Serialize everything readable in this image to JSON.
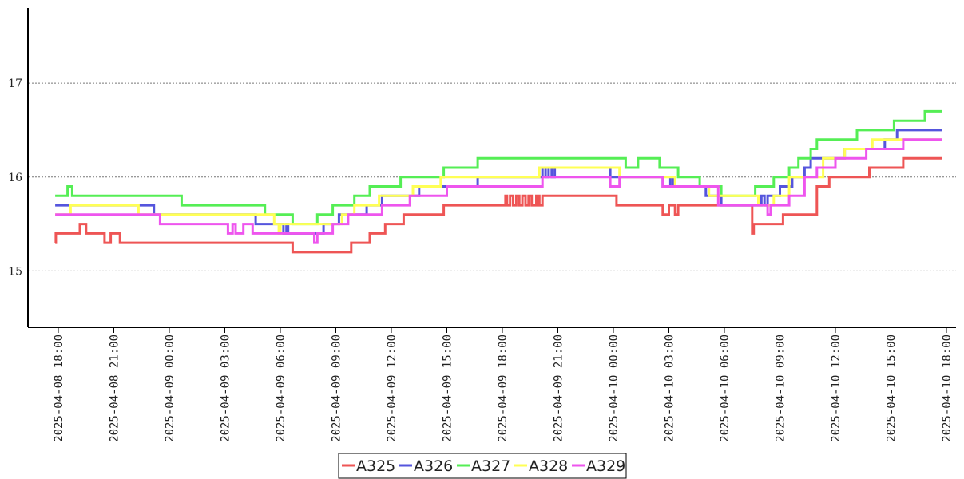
{
  "chart_data": {
    "type": "line",
    "step": true,
    "x_type": "datetime",
    "xlim": [
      "2025-04-08 18:00",
      "2025-04-10 18:00"
    ],
    "ylim": [
      14.4,
      17.8
    ],
    "y_ticks": [
      "15",
      "16",
      "17"
    ],
    "x_ticks": [
      "2025-04-08 18:00",
      "2025-04-08 21:00",
      "2025-04-09 00:00",
      "2025-04-09 03:00",
      "2025-04-09 06:00",
      "2025-04-09 09:00",
      "2025-04-09 12:00",
      "2025-04-09 15:00",
      "2025-04-09 18:00",
      "2025-04-09 21:00",
      "2025-04-10 00:00",
      "2025-04-10 03:00",
      "2025-04-10 06:00",
      "2025-04-10 09:00",
      "2025-04-10 12:00",
      "2025-04-10 15:00",
      "2025-04-10 18:00"
    ],
    "grid": "y-dotted",
    "legend_position": "bottom-center",
    "series": [
      {
        "name": "A325",
        "color": "#ee5555",
        "points": [
          [
            "2025-04-08 17:50",
            15.3
          ],
          [
            "2025-04-08 17:52",
            15.4
          ],
          [
            "2025-04-08 19:10",
            15.5
          ],
          [
            "2025-04-08 19:30",
            15.4
          ],
          [
            "2025-04-08 20:30",
            15.3
          ],
          [
            "2025-04-08 20:50",
            15.4
          ],
          [
            "2025-04-08 21:20",
            15.3
          ],
          [
            "2025-04-09 06:40",
            15.2
          ],
          [
            "2025-04-09 09:50",
            15.3
          ],
          [
            "2025-04-09 10:50",
            15.4
          ],
          [
            "2025-04-09 11:40",
            15.5
          ],
          [
            "2025-04-09 12:40",
            15.6
          ],
          [
            "2025-04-09 14:50",
            15.7
          ],
          [
            "2025-04-09 18:10",
            15.8
          ],
          [
            "2025-04-09 18:15",
            15.7
          ],
          [
            "2025-04-09 18:25",
            15.8
          ],
          [
            "2025-04-09 18:35",
            15.7
          ],
          [
            "2025-04-09 18:45",
            15.8
          ],
          [
            "2025-04-09 18:55",
            15.7
          ],
          [
            "2025-04-09 19:05",
            15.8
          ],
          [
            "2025-04-09 19:15",
            15.7
          ],
          [
            "2025-04-09 19:25",
            15.8
          ],
          [
            "2025-04-09 19:35",
            15.7
          ],
          [
            "2025-04-09 19:50",
            15.8
          ],
          [
            "2025-04-09 20:00",
            15.7
          ],
          [
            "2025-04-09 20:10",
            15.8
          ],
          [
            "2025-04-10 00:10",
            15.7
          ],
          [
            "2025-04-10 02:40",
            15.6
          ],
          [
            "2025-04-10 03:00",
            15.7
          ],
          [
            "2025-04-10 03:20",
            15.6
          ],
          [
            "2025-04-10 03:30",
            15.7
          ],
          [
            "2025-04-10 07:30",
            15.4
          ],
          [
            "2025-04-10 07:35",
            15.5
          ],
          [
            "2025-04-10 09:10",
            15.6
          ],
          [
            "2025-04-10 11:00",
            15.9
          ],
          [
            "2025-04-10 11:40",
            16.0
          ],
          [
            "2025-04-10 13:50",
            16.1
          ],
          [
            "2025-04-10 15:40",
            16.2
          ],
          [
            "2025-04-10 17:45",
            16.2
          ]
        ]
      },
      {
        "name": "A326",
        "color": "#5555dd",
        "points": [
          [
            "2025-04-08 17:50",
            15.7
          ],
          [
            "2025-04-08 23:10",
            15.6
          ],
          [
            "2025-04-09 04:40",
            15.5
          ],
          [
            "2025-04-09 06:10",
            15.4
          ],
          [
            "2025-04-09 06:20",
            15.5
          ],
          [
            "2025-04-09 06:25",
            15.4
          ],
          [
            "2025-04-09 08:20",
            15.5
          ],
          [
            "2025-04-09 09:10",
            15.6
          ],
          [
            "2025-04-09 10:40",
            15.7
          ],
          [
            "2025-04-09 11:30",
            15.8
          ],
          [
            "2025-04-09 13:30",
            15.9
          ],
          [
            "2025-04-09 16:40",
            16.0
          ],
          [
            "2025-04-09 20:10",
            16.1
          ],
          [
            "2025-04-09 20:20",
            16.0
          ],
          [
            "2025-04-09 20:30",
            16.1
          ],
          [
            "2025-04-09 20:40",
            16.0
          ],
          [
            "2025-04-09 20:50",
            16.1
          ],
          [
            "2025-04-09 23:50",
            16.0
          ],
          [
            "2025-04-10 02:40",
            15.9
          ],
          [
            "2025-04-10 03:05",
            16.0
          ],
          [
            "2025-04-10 03:15",
            15.9
          ],
          [
            "2025-04-10 05:00",
            15.8
          ],
          [
            "2025-04-10 05:50",
            15.7
          ],
          [
            "2025-04-10 08:00",
            15.8
          ],
          [
            "2025-04-10 08:10",
            15.7
          ],
          [
            "2025-04-10 08:20",
            15.8
          ],
          [
            "2025-04-10 09:00",
            15.9
          ],
          [
            "2025-04-10 09:40",
            16.0
          ],
          [
            "2025-04-10 10:20",
            16.1
          ],
          [
            "2025-04-10 10:40",
            16.2
          ],
          [
            "2025-04-10 12:30",
            16.3
          ],
          [
            "2025-04-10 14:40",
            16.4
          ],
          [
            "2025-04-10 15:20",
            16.5
          ],
          [
            "2025-04-10 17:45",
            16.5
          ]
        ]
      },
      {
        "name": "A327",
        "color": "#55ee55",
        "points": [
          [
            "2025-04-08 17:50",
            15.8
          ],
          [
            "2025-04-08 18:30",
            15.9
          ],
          [
            "2025-04-08 18:45",
            15.8
          ],
          [
            "2025-04-09 00:40",
            15.7
          ],
          [
            "2025-04-09 05:10",
            15.6
          ],
          [
            "2025-04-09 06:40",
            15.5
          ],
          [
            "2025-04-09 08:00",
            15.6
          ],
          [
            "2025-04-09 08:50",
            15.7
          ],
          [
            "2025-04-09 10:00",
            15.8
          ],
          [
            "2025-04-09 10:50",
            15.9
          ],
          [
            "2025-04-09 12:30",
            16.0
          ],
          [
            "2025-04-09 14:50",
            16.1
          ],
          [
            "2025-04-09 16:40",
            16.2
          ],
          [
            "2025-04-10 00:40",
            16.1
          ],
          [
            "2025-04-10 01:20",
            16.2
          ],
          [
            "2025-04-10 02:30",
            16.1
          ],
          [
            "2025-04-10 03:30",
            16.0
          ],
          [
            "2025-04-10 04:40",
            15.9
          ],
          [
            "2025-04-10 05:50",
            15.8
          ],
          [
            "2025-04-10 07:40",
            15.9
          ],
          [
            "2025-04-10 08:40",
            16.0
          ],
          [
            "2025-04-10 09:30",
            16.1
          ],
          [
            "2025-04-10 10:00",
            16.2
          ],
          [
            "2025-04-10 10:40",
            16.3
          ],
          [
            "2025-04-10 11:00",
            16.4
          ],
          [
            "2025-04-10 13:10",
            16.5
          ],
          [
            "2025-04-10 15:10",
            16.6
          ],
          [
            "2025-04-10 16:50",
            16.7
          ],
          [
            "2025-04-10 17:45",
            16.7
          ]
        ]
      },
      {
        "name": "A328",
        "color": "#ffff55",
        "points": [
          [
            "2025-04-08 17:50",
            15.6
          ],
          [
            "2025-04-08 18:40",
            15.7
          ],
          [
            "2025-04-08 22:20",
            15.6
          ],
          [
            "2025-04-09 05:40",
            15.5
          ],
          [
            "2025-04-09 05:55",
            15.4
          ],
          [
            "2025-04-09 06:00",
            15.5
          ],
          [
            "2025-04-09 09:20",
            15.6
          ],
          [
            "2025-04-09 10:00",
            15.7
          ],
          [
            "2025-04-09 11:20",
            15.8
          ],
          [
            "2025-04-09 13:10",
            15.9
          ],
          [
            "2025-04-09 14:40",
            16.0
          ],
          [
            "2025-04-09 20:00",
            16.1
          ],
          [
            "2025-04-10 00:20",
            16.0
          ],
          [
            "2025-04-10 03:20",
            15.9
          ],
          [
            "2025-04-10 05:10",
            15.8
          ],
          [
            "2025-04-10 07:50",
            15.7
          ],
          [
            "2025-04-10 08:40",
            15.8
          ],
          [
            "2025-04-10 09:30",
            16.0
          ],
          [
            "2025-04-10 11:20",
            16.2
          ],
          [
            "2025-04-10 12:30",
            16.3
          ],
          [
            "2025-04-10 14:00",
            16.4
          ],
          [
            "2025-04-10 15:30",
            16.4
          ],
          [
            "2025-04-10 17:45",
            16.4
          ]
        ]
      },
      {
        "name": "A329",
        "color": "#ee55ee",
        "points": [
          [
            "2025-04-08 17:50",
            15.6
          ],
          [
            "2025-04-08 23:30",
            15.5
          ],
          [
            "2025-04-09 03:10",
            15.4
          ],
          [
            "2025-04-09 03:25",
            15.5
          ],
          [
            "2025-04-09 03:35",
            15.4
          ],
          [
            "2025-04-09 04:00",
            15.5
          ],
          [
            "2025-04-09 04:30",
            15.4
          ],
          [
            "2025-04-09 05:50",
            15.4
          ],
          [
            "2025-04-09 07:50",
            15.3
          ],
          [
            "2025-04-09 08:00",
            15.4
          ],
          [
            "2025-04-09 08:50",
            15.5
          ],
          [
            "2025-04-09 09:40",
            15.6
          ],
          [
            "2025-04-09 11:30",
            15.7
          ],
          [
            "2025-04-09 13:00",
            15.8
          ],
          [
            "2025-04-09 15:00",
            15.9
          ],
          [
            "2025-04-09 19:10",
            15.9
          ],
          [
            "2025-04-09 20:10",
            16.0
          ],
          [
            "2025-04-09 23:50",
            15.9
          ],
          [
            "2025-04-10 00:20",
            16.0
          ],
          [
            "2025-04-10 02:40",
            15.9
          ],
          [
            "2025-04-10 05:40",
            15.7
          ],
          [
            "2025-04-10 08:20",
            15.6
          ],
          [
            "2025-04-10 08:30",
            15.7
          ],
          [
            "2025-04-10 09:30",
            15.8
          ],
          [
            "2025-04-10 10:20",
            16.0
          ],
          [
            "2025-04-10 11:00",
            16.1
          ],
          [
            "2025-04-10 12:00",
            16.2
          ],
          [
            "2025-04-10 13:40",
            16.3
          ],
          [
            "2025-04-10 15:40",
            16.4
          ],
          [
            "2025-04-10 17:45",
            16.4
          ]
        ]
      }
    ]
  }
}
